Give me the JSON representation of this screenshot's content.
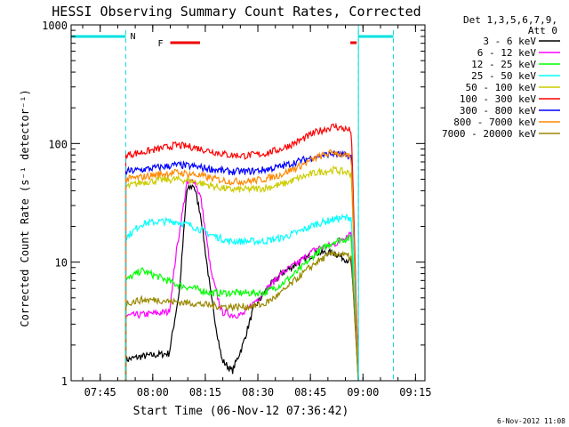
{
  "chart_data": {
    "type": "line",
    "title": "HESSI Observing Summary Count Rates, Corrected",
    "xlabel": "Start Time (06-Nov-12 07:36:42)",
    "ylabel": "Corrected Count Rate (s⁻¹ detector⁻¹)",
    "yscale": "log",
    "ylim": [
      1,
      1000
    ],
    "xlim_minutes_since_0736": [
      0,
      101
    ],
    "x_ticks": [
      {
        "label": "07:45",
        "t": 8.3
      },
      {
        "label": "08:00",
        "t": 23.3
      },
      {
        "label": "08:15",
        "t": 38.3
      },
      {
        "label": "08:30",
        "t": 53.3
      },
      {
        "label": "08:45",
        "t": 68.3
      },
      {
        "label": "09:00",
        "t": 83.3
      },
      {
        "label": "09:15",
        "t": 98.3
      }
    ],
    "y_ticks": [
      {
        "label": "1",
        "v": 1
      },
      {
        "label": "10",
        "v": 10
      },
      {
        "label": "100",
        "v": 100
      },
      {
        "label": "1000",
        "v": 1000
      }
    ],
    "legend_header": [
      "Det 1,3,5,6,7,9,",
      "Att 0"
    ],
    "series": [
      {
        "name": "3 - 6 keV",
        "color": "#000000",
        "t": [
          15.6,
          20,
          28,
          31,
          33,
          35,
          37,
          40,
          43,
          46,
          49,
          52,
          56,
          60,
          65,
          70,
          75,
          80,
          82
        ],
        "values": [
          1.5,
          1.6,
          1.7,
          6,
          40,
          45,
          25,
          5,
          1.5,
          1.2,
          2,
          4,
          6,
          8,
          10,
          12,
          12,
          10,
          1
        ]
      },
      {
        "name": "6 - 12 keV",
        "color": "#ff00ff",
        "t": [
          15.6,
          20,
          28,
          30,
          33,
          35,
          37,
          40,
          43,
          46,
          49,
          52,
          56,
          60,
          65,
          70,
          75,
          80,
          82
        ],
        "values": [
          3.5,
          3.6,
          3.8,
          12,
          45,
          50,
          35,
          8,
          3.8,
          3.6,
          3.6,
          4.5,
          6,
          8,
          10,
          13,
          14,
          18,
          1
        ]
      },
      {
        "name": "12 - 25 keV",
        "color": "#00ff00",
        "t": [
          15.6,
          20,
          25,
          30,
          35,
          40,
          45,
          50,
          55,
          60,
          65,
          70,
          75,
          80,
          82
        ],
        "values": [
          7,
          8.5,
          7.5,
          6.5,
          6,
          5.5,
          5.5,
          5.5,
          5.5,
          6.5,
          8.5,
          12,
          15,
          16,
          1
        ]
      },
      {
        "name": "25 - 50 keV",
        "color": "#00ffff",
        "t": [
          15.6,
          20,
          25,
          30,
          35,
          40,
          45,
          50,
          55,
          60,
          65,
          70,
          75,
          80,
          82
        ],
        "values": [
          16,
          21,
          22,
          22,
          20,
          17,
          15,
          15,
          15,
          16,
          18,
          21,
          23,
          24,
          1
        ]
      },
      {
        "name": "50 - 100 keV",
        "color": "#cccc00",
        "t": [
          15.6,
          20,
          25,
          30,
          35,
          40,
          45,
          50,
          55,
          60,
          65,
          70,
          75,
          80,
          82
        ],
        "values": [
          43,
          47,
          49,
          50,
          48,
          44,
          41,
          41,
          42,
          45,
          51,
          57,
          60,
          56,
          1
        ]
      },
      {
        "name": "100 - 300 keV",
        "color": "#ff0000",
        "t": [
          15.6,
          20,
          25,
          30,
          35,
          40,
          45,
          50,
          55,
          60,
          65,
          70,
          75,
          80,
          82
        ],
        "values": [
          80,
          84,
          90,
          97,
          93,
          86,
          80,
          79,
          82,
          90,
          105,
          125,
          140,
          128,
          1
        ]
      },
      {
        "name": "300 - 800 keV",
        "color": "#0000ff",
        "t": [
          15.6,
          20,
          25,
          30,
          35,
          40,
          45,
          50,
          55,
          60,
          65,
          70,
          75,
          80,
          82
        ],
        "values": [
          58,
          60,
          63,
          66,
          64,
          61,
          58,
          58,
          60,
          64,
          71,
          78,
          82,
          78,
          1
        ]
      },
      {
        "name": "800 - 7000 keV",
        "color": "#ff8800",
        "t": [
          15.6,
          20,
          25,
          30,
          35,
          40,
          45,
          50,
          55,
          60,
          65,
          70,
          75,
          80,
          82
        ],
        "values": [
          50,
          52,
          55,
          57,
          55,
          51,
          48,
          48,
          50,
          55,
          64,
          76,
          85,
          75,
          1
        ]
      },
      {
        "name": "7000 - 20000 keV",
        "color": "#998800",
        "t": [
          15.6,
          20,
          25,
          30,
          35,
          40,
          45,
          50,
          55,
          60,
          65,
          70,
          75,
          80,
          82
        ],
        "values": [
          4.5,
          4.8,
          4.8,
          4.6,
          4.5,
          4.3,
          4.2,
          4.2,
          4.4,
          5.5,
          7.5,
          10,
          12,
          11,
          1
        ]
      }
    ],
    "night_intervals": [
      {
        "label": "N",
        "start": 0,
        "end": 15.6
      },
      {
        "label": "",
        "start": 82,
        "end": 92
      }
    ],
    "flare_intervals": [
      {
        "label": "F",
        "start": 28.3,
        "end": 36.8
      },
      {
        "label": "",
        "start": 79.7,
        "end": 81.5
      }
    ],
    "footer_date": "6-Nov-2012 11:08"
  }
}
